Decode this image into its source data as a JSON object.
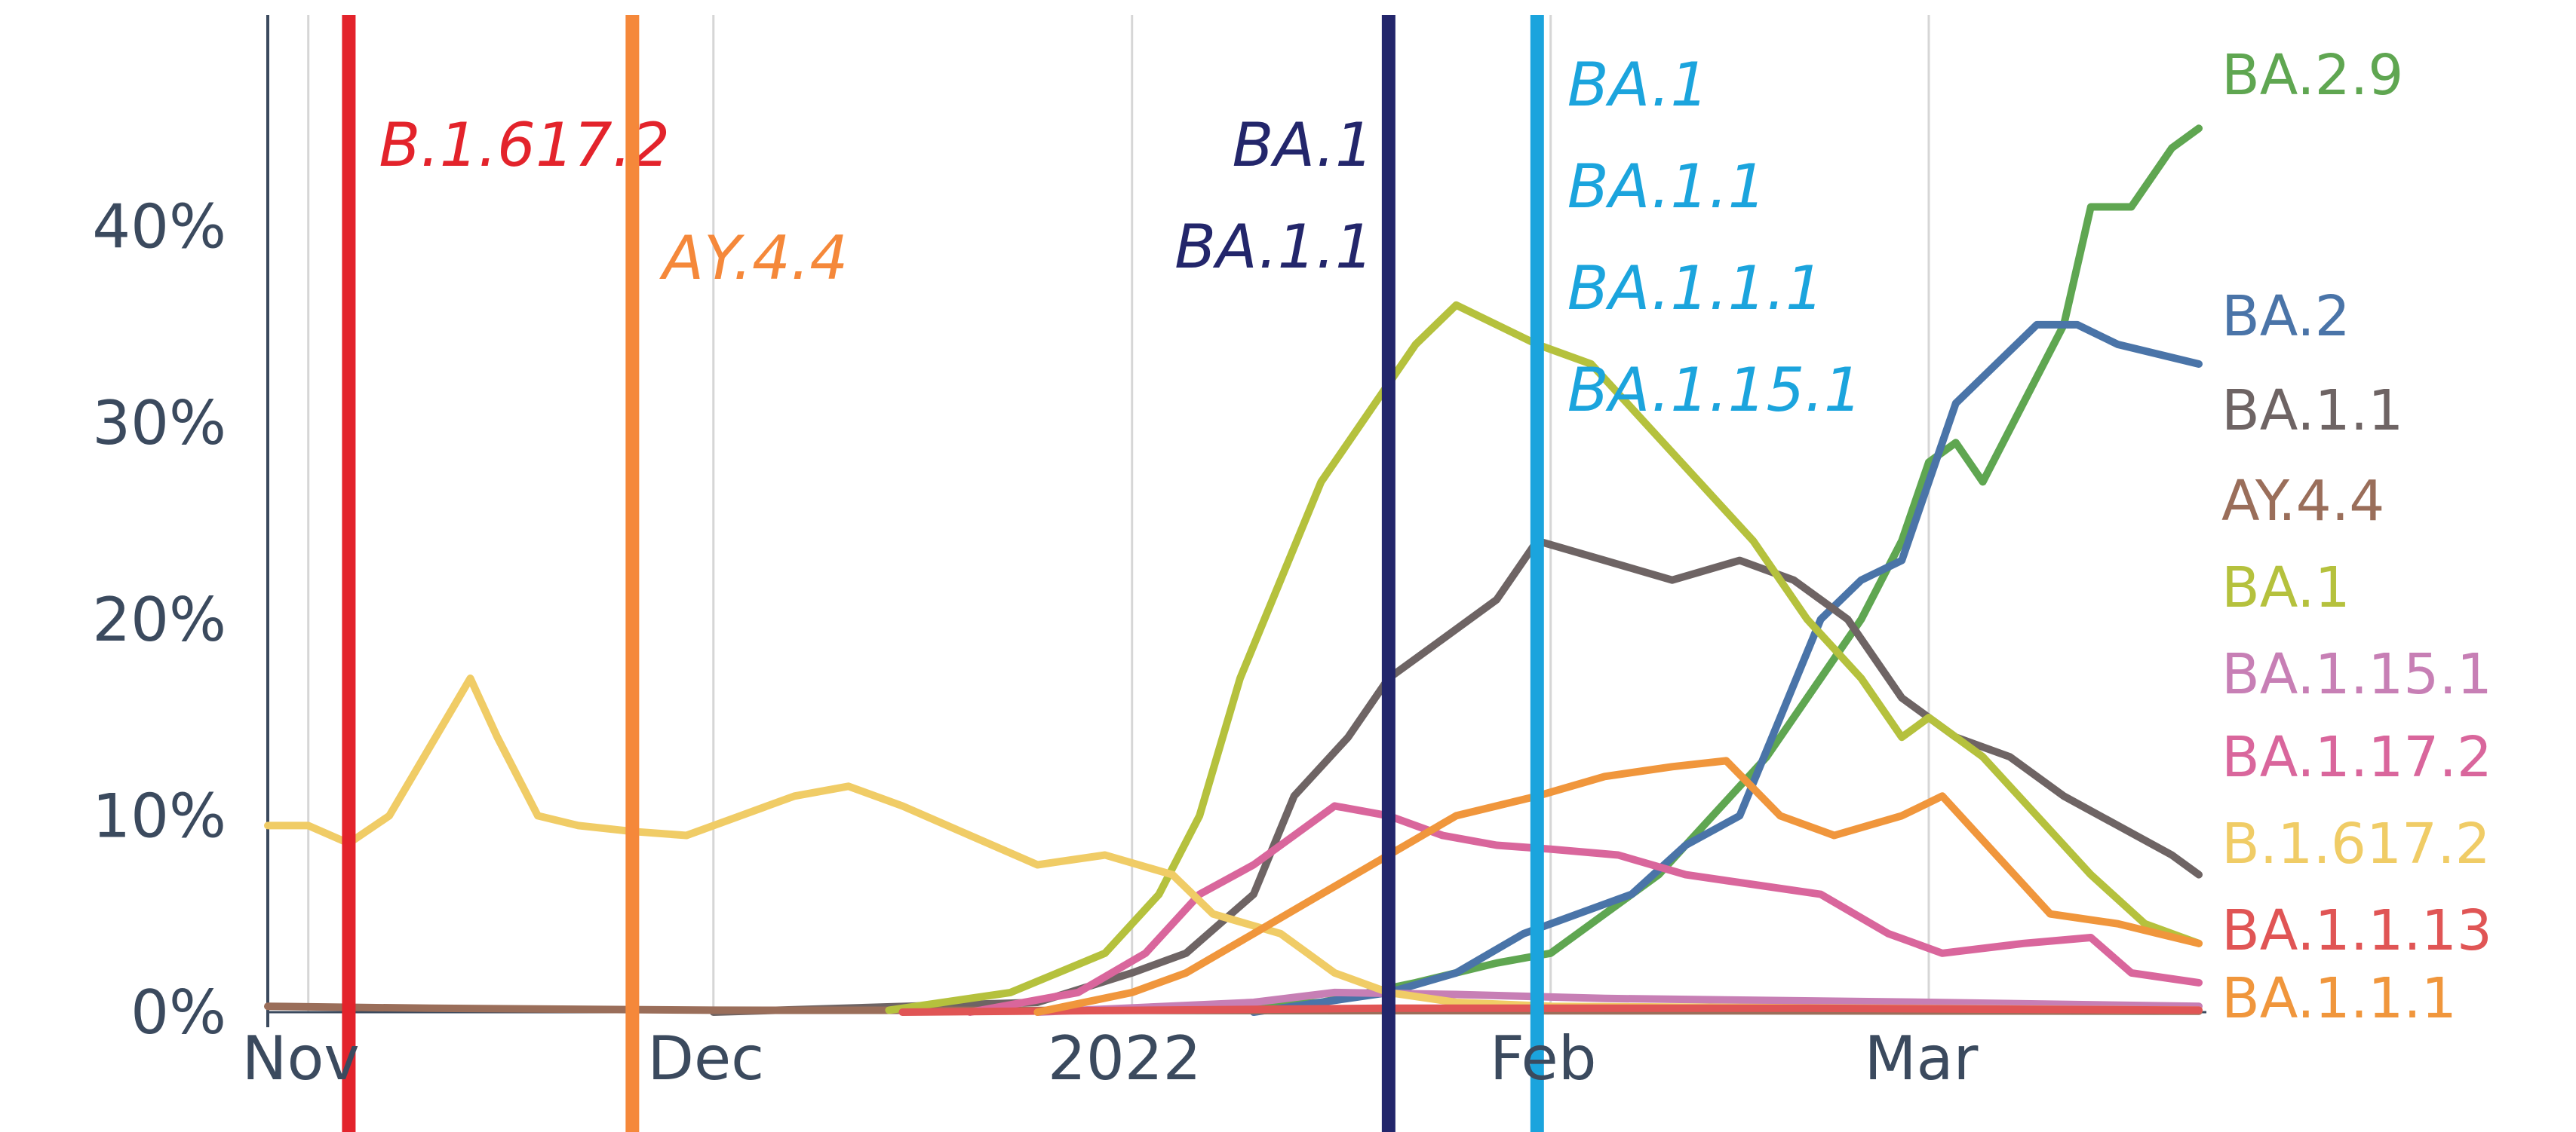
{
  "chart_data": {
    "type": "line",
    "title": "",
    "xlabel": "",
    "ylabel": "",
    "x_ticks": [
      "Nov",
      "Dec",
      "2022",
      "Feb",
      "Mar"
    ],
    "y_ticks": [
      "0%",
      "10%",
      "20%",
      "30%",
      "40%"
    ],
    "ylim": [
      0,
      50
    ],
    "xlim": [
      "2021-10-29",
      "2022-03-21"
    ],
    "grid": "vertical lines at month starts",
    "legend": "series names at right end of lines",
    "event_lines": [
      {
        "date": "2021-11-04",
        "color": "#e3232b",
        "labels": [
          "B.1.617.2"
        ]
      },
      {
        "date": "2021-11-25",
        "color": "#f5883a",
        "labels": [
          "AY.4.4"
        ]
      },
      {
        "date": "2022-01-20",
        "color": "#23266b",
        "labels": [
          "BA.1",
          "BA.1.1"
        ]
      },
      {
        "date": "2022-01-31",
        "color": "#1ba4dd",
        "labels": [
          "BA.1",
          "BA.1.1",
          "BA.1.1.1",
          "BA.1.15.1"
        ]
      }
    ],
    "series": [
      {
        "name": "BA.2.9",
        "color": "#5fa651",
        "points": [
          [
            "2022-01-05",
            0.1
          ],
          [
            "2022-01-15",
            0.5
          ],
          [
            "2022-01-22",
            1.5
          ],
          [
            "2022-01-28",
            2.5
          ],
          [
            "2022-02-01",
            3
          ],
          [
            "2022-02-05",
            5
          ],
          [
            "2022-02-09",
            7
          ],
          [
            "2022-02-13",
            10
          ],
          [
            "2022-02-17",
            13
          ],
          [
            "2022-02-21",
            17
          ],
          [
            "2022-02-24",
            20
          ],
          [
            "2022-02-27",
            24
          ],
          [
            "2022-03-01",
            28
          ],
          [
            "2022-03-03",
            29
          ],
          [
            "2022-03-05",
            27
          ],
          [
            "2022-03-08",
            31
          ],
          [
            "2022-03-11",
            35
          ],
          [
            "2022-03-13",
            41
          ],
          [
            "2022-03-16",
            41
          ],
          [
            "2022-03-19",
            44
          ],
          [
            "2022-03-21",
            45
          ]
        ]
      },
      {
        "name": "BA.2",
        "color": "#4a74a8",
        "points": [
          [
            "2022-01-10",
            0
          ],
          [
            "2022-01-20",
            1
          ],
          [
            "2022-01-25",
            2
          ],
          [
            "2022-01-30",
            4
          ],
          [
            "2022-02-03",
            5
          ],
          [
            "2022-02-07",
            6
          ],
          [
            "2022-02-11",
            8.5
          ],
          [
            "2022-02-15",
            10
          ],
          [
            "2022-02-18",
            15
          ],
          [
            "2022-02-21",
            20
          ],
          [
            "2022-02-24",
            22
          ],
          [
            "2022-02-27",
            23
          ],
          [
            "2022-03-01",
            27
          ],
          [
            "2022-03-03",
            31
          ],
          [
            "2022-03-06",
            33
          ],
          [
            "2022-03-09",
            35
          ],
          [
            "2022-03-12",
            35
          ],
          [
            "2022-03-15",
            34
          ],
          [
            "2022-03-18",
            33.5
          ],
          [
            "2022-03-21",
            33
          ]
        ]
      },
      {
        "name": "BA.1.1",
        "color": "#6e6464",
        "points": [
          [
            "2021-12-01",
            0
          ],
          [
            "2021-12-25",
            0.5
          ],
          [
            "2022-01-01",
            2
          ],
          [
            "2022-01-05",
            3
          ],
          [
            "2022-01-10",
            6
          ],
          [
            "2022-01-13",
            11
          ],
          [
            "2022-01-17",
            14
          ],
          [
            "2022-01-20",
            17
          ],
          [
            "2022-01-24",
            19
          ],
          [
            "2022-01-28",
            21
          ],
          [
            "2022-01-31",
            24
          ],
          [
            "2022-02-05",
            23
          ],
          [
            "2022-02-10",
            22
          ],
          [
            "2022-02-15",
            23
          ],
          [
            "2022-02-19",
            22
          ],
          [
            "2022-02-23",
            20
          ],
          [
            "2022-02-27",
            16
          ],
          [
            "2022-03-03",
            14
          ],
          [
            "2022-03-07",
            13
          ],
          [
            "2022-03-11",
            11
          ],
          [
            "2022-03-15",
            9.5
          ],
          [
            "2022-03-19",
            8
          ],
          [
            "2022-03-21",
            7
          ]
        ]
      },
      {
        "name": "AY.4.4",
        "color": "#9a6e5a",
        "points": [
          [
            "2021-10-29",
            0.3
          ],
          [
            "2021-11-10",
            0.2
          ],
          [
            "2021-12-01",
            0.1
          ],
          [
            "2022-03-21",
            0.05
          ]
        ]
      },
      {
        "name": "BA.1",
        "color": "#b5c13d",
        "points": [
          [
            "2021-12-14",
            0.1
          ],
          [
            "2021-12-23",
            1
          ],
          [
            "2021-12-30",
            3
          ],
          [
            "2022-01-03",
            6
          ],
          [
            "2022-01-06",
            10
          ],
          [
            "2022-01-09",
            17
          ],
          [
            "2022-01-12",
            22
          ],
          [
            "2022-01-15",
            27
          ],
          [
            "2022-01-19",
            31
          ],
          [
            "2022-01-22",
            34
          ],
          [
            "2022-01-25",
            36
          ],
          [
            "2022-01-28",
            35
          ],
          [
            "2022-01-31",
            34
          ],
          [
            "2022-02-04",
            33
          ],
          [
            "2022-02-08",
            30
          ],
          [
            "2022-02-12",
            27
          ],
          [
            "2022-02-16",
            24
          ],
          [
            "2022-02-20",
            20
          ],
          [
            "2022-02-24",
            17
          ],
          [
            "2022-02-27",
            14
          ],
          [
            "2022-03-01",
            15
          ],
          [
            "2022-03-05",
            13
          ],
          [
            "2022-03-09",
            10
          ],
          [
            "2022-03-13",
            7
          ],
          [
            "2022-03-17",
            4.5
          ],
          [
            "2022-03-21",
            3.5
          ]
        ]
      },
      {
        "name": "BA.1.15.1",
        "color": "#c77fb5",
        "points": [
          [
            "2021-12-25",
            0
          ],
          [
            "2022-01-10",
            0.5
          ],
          [
            "2022-01-16",
            1
          ],
          [
            "2022-01-25",
            0.9
          ],
          [
            "2022-02-05",
            0.7
          ],
          [
            "2022-03-01",
            0.5
          ],
          [
            "2022-03-21",
            0.3
          ]
        ]
      },
      {
        "name": "BA.1.17.2",
        "color": "#d9669c",
        "points": [
          [
            "2021-12-20",
            0
          ],
          [
            "2021-12-28",
            1
          ],
          [
            "2022-01-02",
            3
          ],
          [
            "2022-01-06",
            6
          ],
          [
            "2022-01-10",
            7.5
          ],
          [
            "2022-01-13",
            9
          ],
          [
            "2022-01-16",
            10.5
          ],
          [
            "2022-01-20",
            10
          ],
          [
            "2022-01-24",
            9
          ],
          [
            "2022-01-28",
            8.5
          ],
          [
            "2022-02-01",
            8.3
          ],
          [
            "2022-02-06",
            8
          ],
          [
            "2022-02-11",
            7
          ],
          [
            "2022-02-16",
            6.5
          ],
          [
            "2022-02-21",
            6
          ],
          [
            "2022-02-26",
            4
          ],
          [
            "2022-03-02",
            3
          ],
          [
            "2022-03-08",
            3.5
          ],
          [
            "2022-03-13",
            3.8
          ],
          [
            "2022-03-16",
            2
          ],
          [
            "2022-03-21",
            1.5
          ]
        ]
      },
      {
        "name": "B.1.617.2",
        "color": "#f0cc66",
        "points": [
          [
            "2021-10-29",
            9.5
          ],
          [
            "2021-11-01",
            9.5
          ],
          [
            "2021-11-04",
            8.6
          ],
          [
            "2021-11-07",
            10
          ],
          [
            "2021-11-10",
            13.5
          ],
          [
            "2021-11-13",
            17
          ],
          [
            "2021-11-15",
            14
          ],
          [
            "2021-11-18",
            10
          ],
          [
            "2021-11-21",
            9.5
          ],
          [
            "2021-11-25",
            9.2
          ],
          [
            "2021-11-29",
            9
          ],
          [
            "2021-12-03",
            10
          ],
          [
            "2021-12-07",
            11
          ],
          [
            "2021-12-11",
            11.5
          ],
          [
            "2021-12-15",
            10.5
          ],
          [
            "2021-12-20",
            9
          ],
          [
            "2021-12-25",
            7.5
          ],
          [
            "2021-12-30",
            8
          ],
          [
            "2022-01-04",
            7
          ],
          [
            "2022-01-07",
            5
          ],
          [
            "2022-01-12",
            4
          ],
          [
            "2022-01-16",
            2
          ],
          [
            "2022-01-20",
            1
          ],
          [
            "2022-01-25",
            0.5
          ],
          [
            "2022-02-01",
            0.3
          ],
          [
            "2022-03-21",
            0.1
          ]
        ]
      },
      {
        "name": "BA.1.1.13",
        "color": "#e05555",
        "points": [
          [
            "2021-12-15",
            0
          ],
          [
            "2022-01-20",
            0.2
          ],
          [
            "2022-02-20",
            0.2
          ],
          [
            "2022-03-21",
            0.1
          ]
        ]
      },
      {
        "name": "BA.1.1.1",
        "color": "#f0963c",
        "points": [
          [
            "2021-12-25",
            0
          ],
          [
            "2022-01-01",
            1
          ],
          [
            "2022-01-05",
            2
          ],
          [
            "2022-01-10",
            4
          ],
          [
            "2022-01-15",
            6
          ],
          [
            "2022-01-20",
            8
          ],
          [
            "2022-01-25",
            10
          ],
          [
            "2022-01-31",
            11
          ],
          [
            "2022-02-05",
            12
          ],
          [
            "2022-02-10",
            12.5
          ],
          [
            "2022-02-14",
            12.8
          ],
          [
            "2022-02-18",
            10
          ],
          [
            "2022-02-22",
            9
          ],
          [
            "2022-02-27",
            10
          ],
          [
            "2022-03-02",
            11
          ],
          [
            "2022-03-06",
            8
          ],
          [
            "2022-03-10",
            5
          ],
          [
            "2022-03-15",
            4.5
          ],
          [
            "2022-03-18",
            4
          ],
          [
            "2022-03-21",
            3.5
          ]
        ]
      }
    ],
    "end_labels": [
      {
        "text": "BA.2.9",
        "color": "#5fa651"
      },
      {
        "text": "BA.2",
        "color": "#4a74a8"
      },
      {
        "text": "BA.1.1",
        "color": "#6e6464"
      },
      {
        "text": "AY.4.4",
        "color": "#9a6e5a"
      },
      {
        "text": "BA.1",
        "color": "#b5c13d"
      },
      {
        "text": "BA.1.15.1",
        "color": "#c77fb5"
      },
      {
        "text": "BA.1.17.2",
        "color": "#d9669c"
      },
      {
        "text": "B.1.617.2",
        "color": "#f0cc66"
      },
      {
        "text": "BA.1.1.13",
        "color": "#e05555"
      },
      {
        "text": "BA.1.1.1",
        "color": "#f0963c"
      }
    ]
  }
}
